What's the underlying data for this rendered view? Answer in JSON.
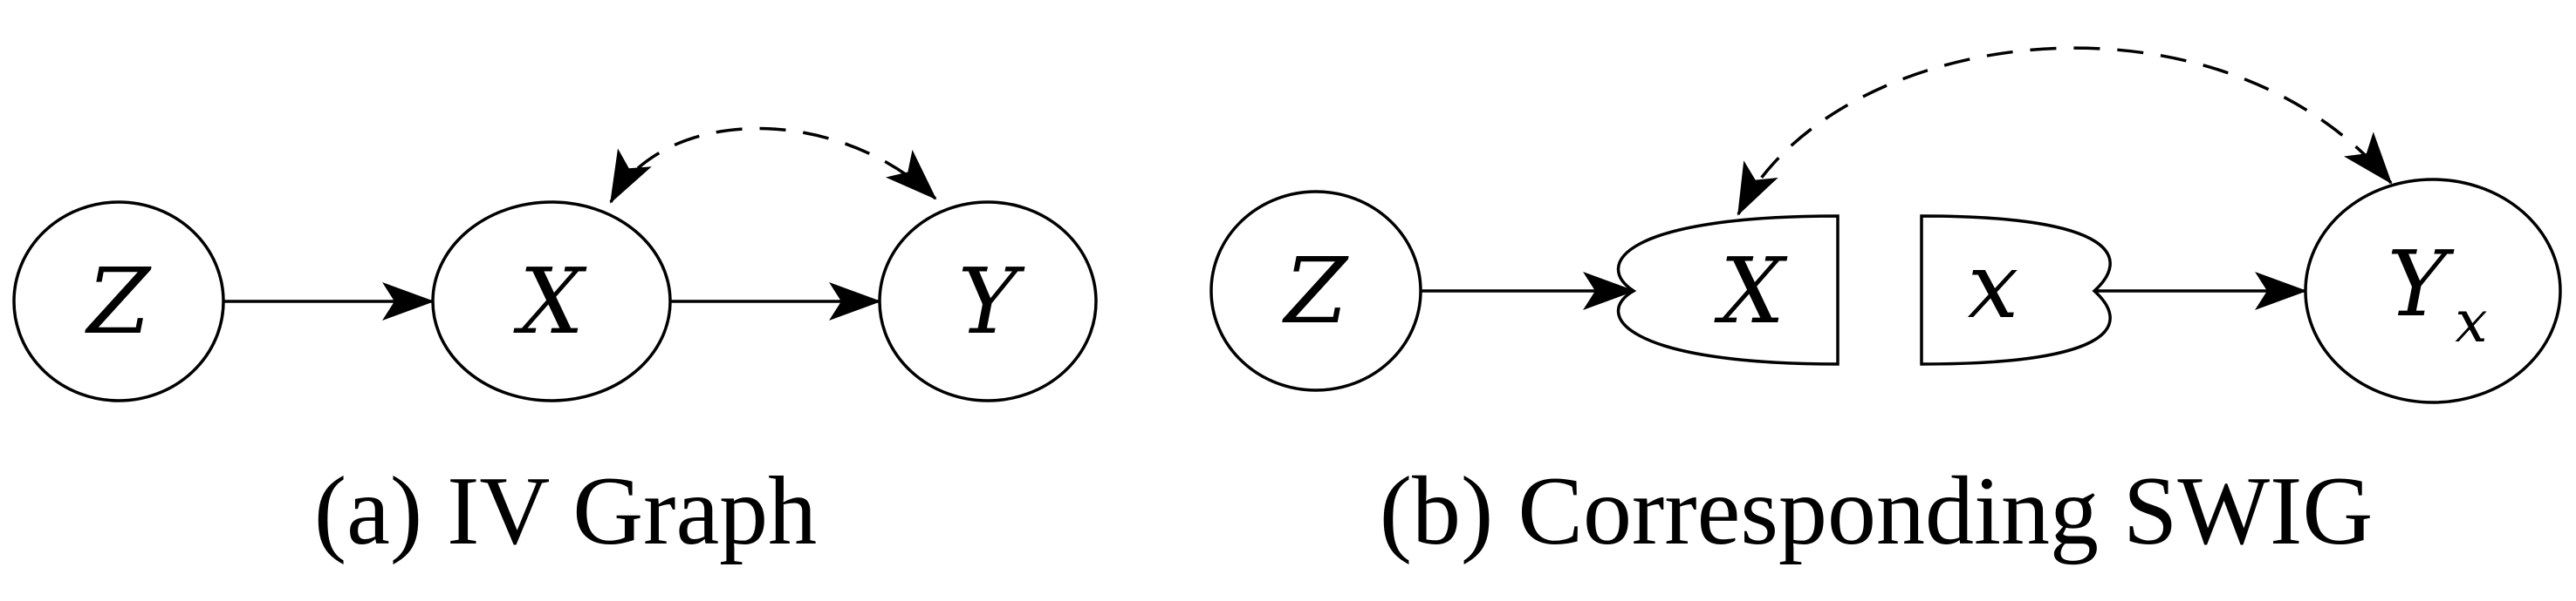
{
  "panels": [
    {
      "caption": "(a) IV Graph",
      "nodes": {
        "z": "Z",
        "x": "X",
        "y": "Y"
      }
    },
    {
      "caption": "(b) Corresponding SWIG",
      "nodes": {
        "z": "Z",
        "x_random": "X",
        "x_fixed": "x",
        "y_main": "Y",
        "y_sub": "x"
      }
    }
  ]
}
